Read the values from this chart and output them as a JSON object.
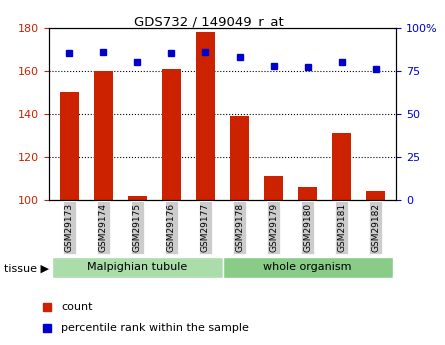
{
  "title": "GDS732 / 149049_r_at",
  "samples": [
    "GSM29173",
    "GSM29174",
    "GSM29175",
    "GSM29176",
    "GSM29177",
    "GSM29178",
    "GSM29179",
    "GSM29180",
    "GSM29181",
    "GSM29182"
  ],
  "count_values": [
    150,
    160,
    102,
    161,
    178,
    139,
    111,
    106,
    131,
    104
  ],
  "percentile_values": [
    85,
    86,
    80,
    85,
    86,
    83,
    78,
    77,
    80,
    76
  ],
  "bar_color": "#cc2200",
  "dot_color": "#0000cc",
  "left_ylim": [
    100,
    180
  ],
  "left_yticks": [
    100,
    120,
    140,
    160,
    180
  ],
  "right_ylim": [
    0,
    100
  ],
  "right_yticks": [
    0,
    25,
    50,
    75,
    100
  ],
  "right_yticklabels": [
    "0",
    "25",
    "50",
    "75",
    "100%"
  ],
  "n_group1": 5,
  "n_group2": 5,
  "group1_label": "Malpighian tubule",
  "group2_label": "whole organism",
  "group1_color": "#aaddaa",
  "group2_color": "#88cc88",
  "tissue_label": "tissue ▶",
  "legend_count_label": "count",
  "legend_pct_label": "percentile rank within the sample",
  "bar_color_legend": "#cc2200",
  "dot_color_legend": "#0000cc",
  "tick_label_color_left": "#cc2200",
  "tick_label_color_right": "#0000cc",
  "bar_bottom": 100,
  "xtick_bg_color": "#cccccc"
}
